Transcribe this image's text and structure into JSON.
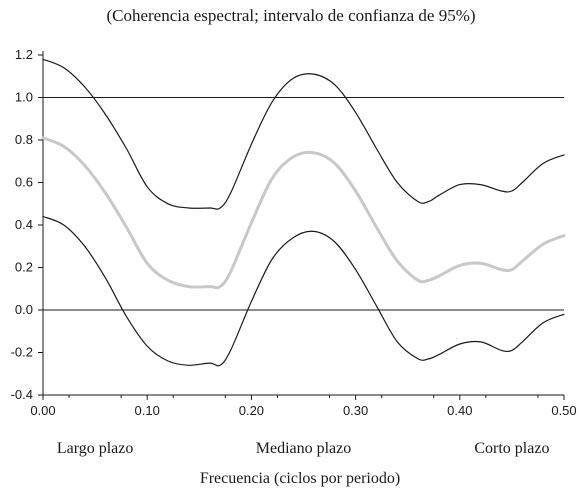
{
  "chart_data": {
    "type": "line",
    "subtitle": "(Coherencia espectral; intervalo de confianza de 95%)",
    "xlabel": "Frecuencia (ciclos por periodo)",
    "ylabel": "",
    "xlim": [
      0,
      0.5
    ],
    "ylim": [
      -0.4,
      1.2
    ],
    "xticks": [
      "0.00",
      "0.10",
      "0.20",
      "0.30",
      "0.40",
      "0.50"
    ],
    "yticks": [
      "1.2",
      "1.0",
      "0.8",
      "0.6",
      "0.4",
      "0.2",
      "0.0",
      "-0.2",
      "-0.4"
    ],
    "reference_lines": [
      1.0,
      0.0
    ],
    "band_labels": [
      {
        "label": "Largo plazo",
        "x": 0.05
      },
      {
        "label": "Mediano plazo",
        "x": 0.25
      },
      {
        "label": "Corto plazo",
        "x": 0.45
      }
    ],
    "x": [
      0.0,
      0.02,
      0.04,
      0.06,
      0.08,
      0.1,
      0.12,
      0.14,
      0.16,
      0.17,
      0.18,
      0.2,
      0.22,
      0.24,
      0.26,
      0.28,
      0.3,
      0.32,
      0.34,
      0.36,
      0.37,
      0.38,
      0.4,
      0.42,
      0.44,
      0.45,
      0.46,
      0.48,
      0.5
    ],
    "series": [
      {
        "role": "upper",
        "color": "#1a1a1a",
        "values": [
          1.18,
          1.14,
          1.05,
          0.92,
          0.76,
          0.58,
          0.5,
          0.48,
          0.48,
          0.48,
          0.55,
          0.78,
          0.98,
          1.09,
          1.11,
          1.06,
          0.93,
          0.76,
          0.6,
          0.51,
          0.51,
          0.54,
          0.59,
          0.59,
          0.56,
          0.56,
          0.6,
          0.69,
          0.73
        ]
      },
      {
        "role": "estimate",
        "color": "#c8c8c8",
        "values": [
          0.81,
          0.77,
          0.68,
          0.55,
          0.39,
          0.22,
          0.14,
          0.11,
          0.11,
          0.11,
          0.18,
          0.41,
          0.62,
          0.72,
          0.74,
          0.69,
          0.56,
          0.39,
          0.23,
          0.14,
          0.14,
          0.16,
          0.21,
          0.22,
          0.19,
          0.19,
          0.23,
          0.31,
          0.35
        ]
      },
      {
        "role": "lower",
        "color": "#1a1a1a",
        "values": [
          0.44,
          0.4,
          0.3,
          0.15,
          -0.03,
          -0.17,
          -0.24,
          -0.26,
          -0.25,
          -0.26,
          -0.19,
          0.04,
          0.24,
          0.34,
          0.37,
          0.32,
          0.19,
          0.02,
          -0.15,
          -0.23,
          -0.23,
          -0.21,
          -0.16,
          -0.15,
          -0.19,
          -0.19,
          -0.15,
          -0.06,
          -0.02
        ]
      }
    ]
  }
}
